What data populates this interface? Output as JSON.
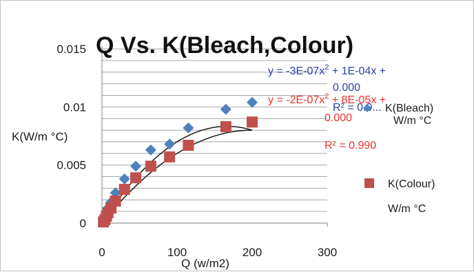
{
  "chart_data": {
    "type": "scatter",
    "title": "Q Vs. K(Bleach,Colour)",
    "xlabel": "Q (w/m2)",
    "ylabel": "K(W/m °C)",
    "xlim": [
      0,
      300
    ],
    "ylim": [
      0,
      0.015
    ],
    "x_ticks": [
      "0",
      "100",
      "200",
      "300"
    ],
    "y_ticks": [
      "0",
      "0.005",
      "0.01",
      "0.015"
    ],
    "grid": "horizontal",
    "series": [
      {
        "key": "bleach",
        "name": "K(Bleach) W/m °C",
        "color": "#4f81bd",
        "marker": "diamond",
        "x": [
          2,
          4,
          6,
          8,
          12,
          18,
          30,
          45,
          65,
          90,
          115,
          165,
          200
        ],
        "y": [
          0.0002,
          0.0005,
          0.0009,
          0.0013,
          0.0018,
          0.0026,
          0.0038,
          0.0049,
          0.0063,
          0.0068,
          0.0082,
          0.0098,
          0.0104
        ]
      },
      {
        "key": "colour",
        "name": "K(Colour) W/m °C",
        "color": "#c0504d",
        "marker": "square",
        "x": [
          2,
          4,
          6,
          8,
          12,
          18,
          30,
          45,
          65,
          90,
          115,
          165,
          200
        ],
        "y": [
          0.0001,
          0.0003,
          0.0006,
          0.0009,
          0.0013,
          0.0019,
          0.0029,
          0.0039,
          0.0049,
          0.0057,
          0.0067,
          0.0083,
          0.0087
        ]
      }
    ],
    "trendlines": [
      {
        "series": "bleach",
        "order": 2,
        "a": -3e-07,
        "b": 0.0001,
        "c": 0,
        "x_range": [
          2,
          200
        ],
        "color": "#1a1a1a"
      },
      {
        "series": "colour",
        "order": 2,
        "a": -2e-07,
        "b": 8e-05,
        "c": 0,
        "x_range": [
          2,
          200
        ],
        "color": "#1a1a1a"
      }
    ],
    "annotations": {
      "eq_bleach_line1": "y = -3E-07x",
      "eq_bleach_line1_sup": "2",
      "eq_bleach_line1_rest": " + 1E-04x +",
      "eq_bleach_line2": "0.000",
      "eq_bleach_r2": "R² = 0.9...",
      "eq_colour_line1": "y = -2E-07x",
      "eq_colour_line1_sup": "2",
      "eq_colour_line1_rest": " + 8E-05x +",
      "eq_colour_line2": "0.000",
      "eq_colour_r2": "R² = 0.990",
      "color_bleach_eq": "#2b3fa8",
      "color_colour_eq": "#e8312c"
    },
    "legend": {
      "placement": "right",
      "bleach_partial": "K(Bleach)",
      "bleach_unit_partial": "W/m °C",
      "colour_line1": "K(Colour)",
      "colour_line2": "W/m °C"
    }
  }
}
